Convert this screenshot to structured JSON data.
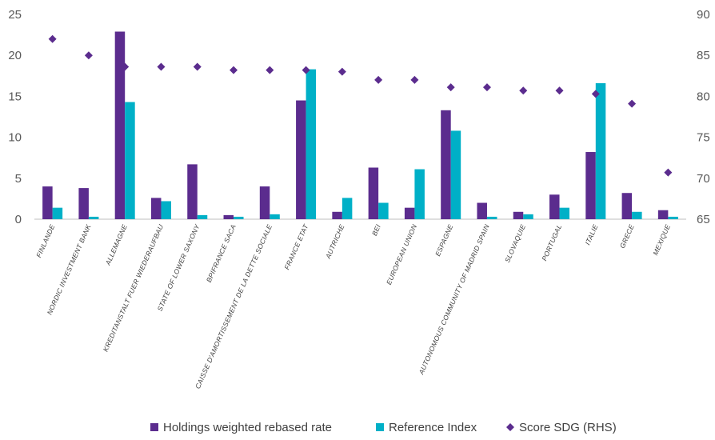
{
  "chart_data": {
    "type": "bar",
    "categories": [
      "FINLANDE",
      "NORDIC INVESTMENT BANK",
      "ALLEMAGNE",
      "KREDITANSTALT FUER WIEDERAUFBAU",
      "STATE OF LOWER SAXONY",
      "BPIFRANCE SACA",
      "CAISSE D'AMORTISSEMENT DE LA DETTE SOCIALE",
      "FRANCE ETAT",
      "AUTRICHE",
      "BEI",
      "EUROPEAN UNION",
      "ESPAGNE",
      "AUTONOMOUS COMMUNITY OF MADRID SPAIN",
      "SLOVAQUIE",
      "PORTUGAL",
      "ITALIE",
      "GRECE",
      "MEXIQUE"
    ],
    "series": [
      {
        "name": "Holdings weighted rebased rate",
        "axis": "left",
        "kind": "bar",
        "color": "#5B2C8E",
        "values": [
          4.0,
          3.8,
          22.9,
          2.6,
          6.7,
          0.5,
          4.0,
          14.5,
          0.9,
          6.3,
          1.4,
          13.3,
          2.0,
          0.9,
          3.0,
          8.2,
          3.2,
          1.1
        ]
      },
      {
        "name": "Reference Index",
        "axis": "left",
        "kind": "bar",
        "color": "#00B0C7",
        "values": [
          1.4,
          0.3,
          14.3,
          2.2,
          0.5,
          0.3,
          0.6,
          18.3,
          2.6,
          2.0,
          6.1,
          10.8,
          0.3,
          0.6,
          1.4,
          16.6,
          0.9,
          0.3
        ]
      },
      {
        "name": "Score SDG (RHS)",
        "axis": "right",
        "kind": "scatter",
        "marker": "diamond",
        "color": "#5B2C8E",
        "values": [
          87.0,
          85.0,
          83.6,
          83.6,
          83.6,
          83.2,
          83.2,
          83.2,
          83.0,
          82.0,
          82.0,
          81.1,
          81.1,
          80.7,
          80.7,
          80.3,
          79.1,
          70.7
        ]
      }
    ],
    "ylim": [
      0,
      25
    ],
    "yticks": [
      "0",
      "5",
      "10",
      "15",
      "20",
      "25"
    ],
    "y2lim": [
      65,
      90
    ],
    "y2ticks": [
      "65",
      "70",
      "75",
      "80",
      "85",
      "90"
    ],
    "legend_position": "bottom",
    "grid": false,
    "axis_color": "#BFBFBF"
  }
}
